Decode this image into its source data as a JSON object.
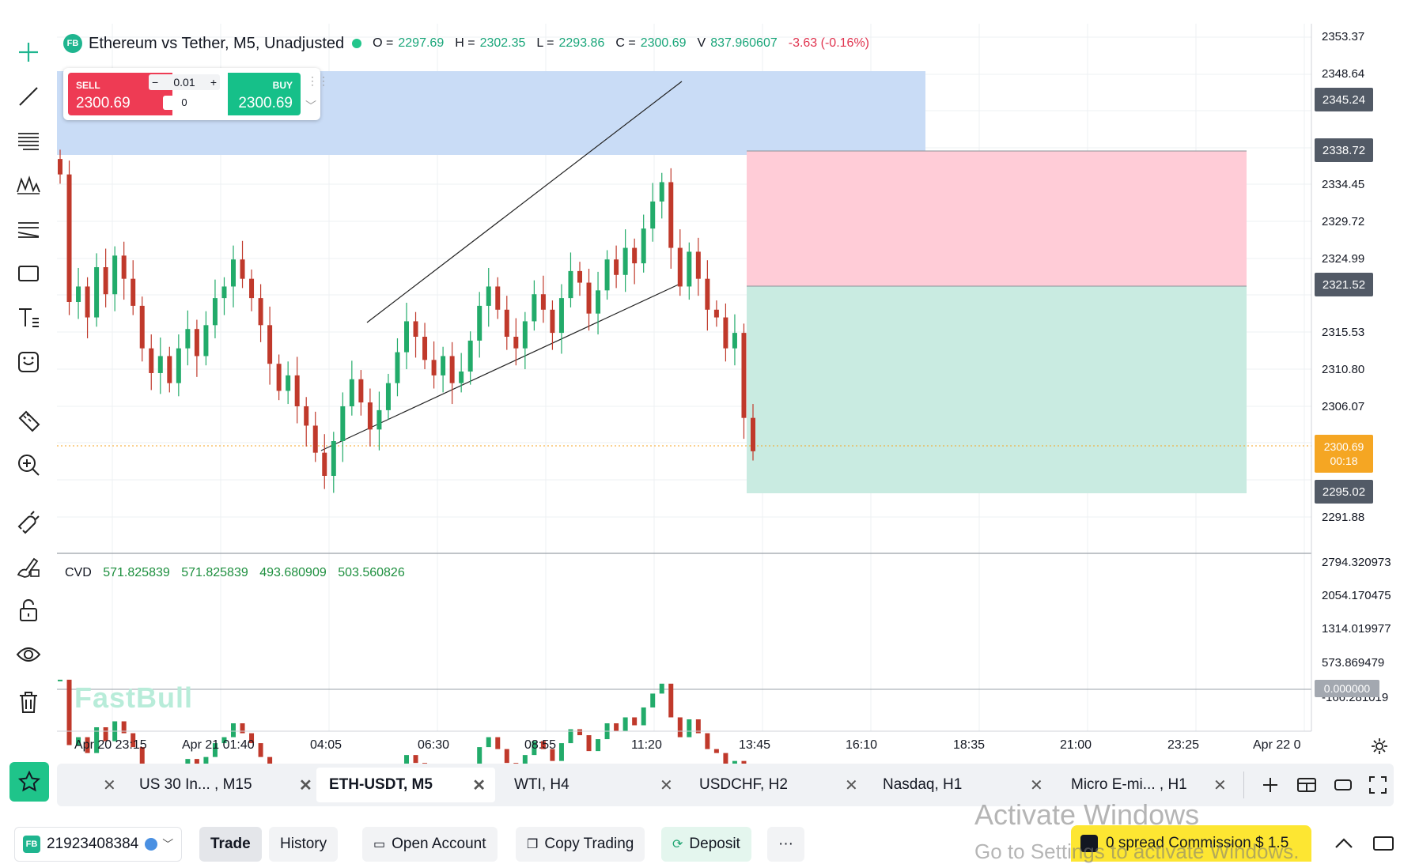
{
  "legend": {
    "logo": "FB",
    "symbol": "Ethereum vs Tether, M5, Unadjusted",
    "open_label": "O =",
    "open": "2297.69",
    "high_label": "H =",
    "high": "2302.35",
    "low_label": "L =",
    "low": "2293.86",
    "close_label": "C =",
    "close": "2300.69",
    "volume_label": "V",
    "volume": "837.960607",
    "change": "-3.63 (-0.16%)"
  },
  "trade_widget": {
    "sell_label": "SELL",
    "sell_price": "2300.69",
    "buy_label": "BUY",
    "buy_price": "2300.69",
    "quantity": "0.01",
    "minus": "−",
    "plus": "+",
    "spread": "0"
  },
  "price_axis": {
    "labels": [
      "2353.37",
      "2348.64",
      "2334.45",
      "2329.72",
      "2324.99",
      "2315.53",
      "2310.80",
      "2306.07",
      "2291.88"
    ],
    "badges": [
      {
        "value": "2345.24",
        "color": "#525a66"
      },
      {
        "value": "2338.72",
        "color": "#525a66"
      },
      {
        "value": "2321.52",
        "color": "#525a66"
      },
      {
        "value": "2295.02",
        "color": "#525a66"
      }
    ],
    "current_price": "2300.69",
    "countdown": "00:18",
    "current_color": "#f5a623"
  },
  "cvd": {
    "name": "CVD",
    "values": [
      "571.825839",
      "571.825839",
      "493.680909",
      "503.560826"
    ],
    "axis_labels": [
      "2794.320973",
      "2054.170475",
      "1314.019977",
      "573.869479",
      "-166.281019"
    ],
    "zero_badge": "0.000000"
  },
  "watermark": "FastBull",
  "time_axis": [
    "Apr 20 23:15",
    "Apr 21 01:40",
    "04:05",
    "06:30",
    "08:55",
    "11:20",
    "13:45",
    "16:10",
    "18:35",
    "21:00",
    "23:25",
    "Apr 22 0"
  ],
  "tabs": [
    {
      "label": "US 30 In... , M15",
      "active": false
    },
    {
      "label": "ETH-USDT, M5",
      "active": true
    },
    {
      "label": "WTI, H4",
      "active": false
    },
    {
      "label": "USDCHF, H2",
      "active": false
    },
    {
      "label": "Nasdaq, H1",
      "active": false
    },
    {
      "label": "Micro E-mi... , H1",
      "active": false
    }
  ],
  "bottom_bar": {
    "account_logo": "FB",
    "account_id": "21923408384",
    "trade": "Trade",
    "history": "History",
    "open_account": "Open Account",
    "copy_trading": "Copy Trading",
    "deposit": "Deposit",
    "more": "···",
    "promo": "0 spread Commission $ 1.5"
  },
  "overlay": {
    "activate_title": "Activate Windows",
    "activate_sub": "Go to Settings to activate Windows."
  },
  "colors": {
    "up": "#22ab6a",
    "down": "#c0392b",
    "zone_blue": "#c9dcf6",
    "zone_red": "#ffccd7",
    "zone_green": "#c9ebe1"
  },
  "chart_data": {
    "type": "candlestick",
    "symbol": "Ethereum vs Tether",
    "interval": "M5",
    "y_range": [
      2288.5,
      2356.0
    ],
    "closes": [
      2336.5,
      2320.0,
      2322.0,
      2318.0,
      2324.5,
      2321.0,
      2326.0,
      2323.0,
      2319.5,
      2314.0,
      2310.8,
      2313.0,
      2309.5,
      2314.0,
      2316.5,
      2313.0,
      2317.0,
      2320.5,
      2322.0,
      2325.5,
      2323.0,
      2320.5,
      2317.0,
      2312.0,
      2308.5,
      2310.5,
      2306.5,
      2304.0,
      2300.5,
      2297.5,
      2302.0,
      2306.5,
      2310.0,
      2307.0,
      2303.5,
      2306.0,
      2309.5,
      2313.5,
      2317.5,
      2315.5,
      2312.5,
      2310.5,
      2313.0,
      2309.5,
      2311.0,
      2315.0,
      2319.5,
      2322.0,
      2319.0,
      2315.5,
      2314.0,
      2317.5,
      2321.0,
      2319.0,
      2316.0,
      2320.5,
      2324.0,
      2322.5,
      2318.5,
      2321.5,
      2325.5,
      2323.5,
      2327.0,
      2325.0,
      2329.5,
      2333.0,
      2335.5,
      2327.0,
      2322.0,
      2326.5,
      2323.0,
      2319.0,
      2318.0,
      2314.0,
      2316.0,
      2305.0,
      2300.69
    ]
  }
}
